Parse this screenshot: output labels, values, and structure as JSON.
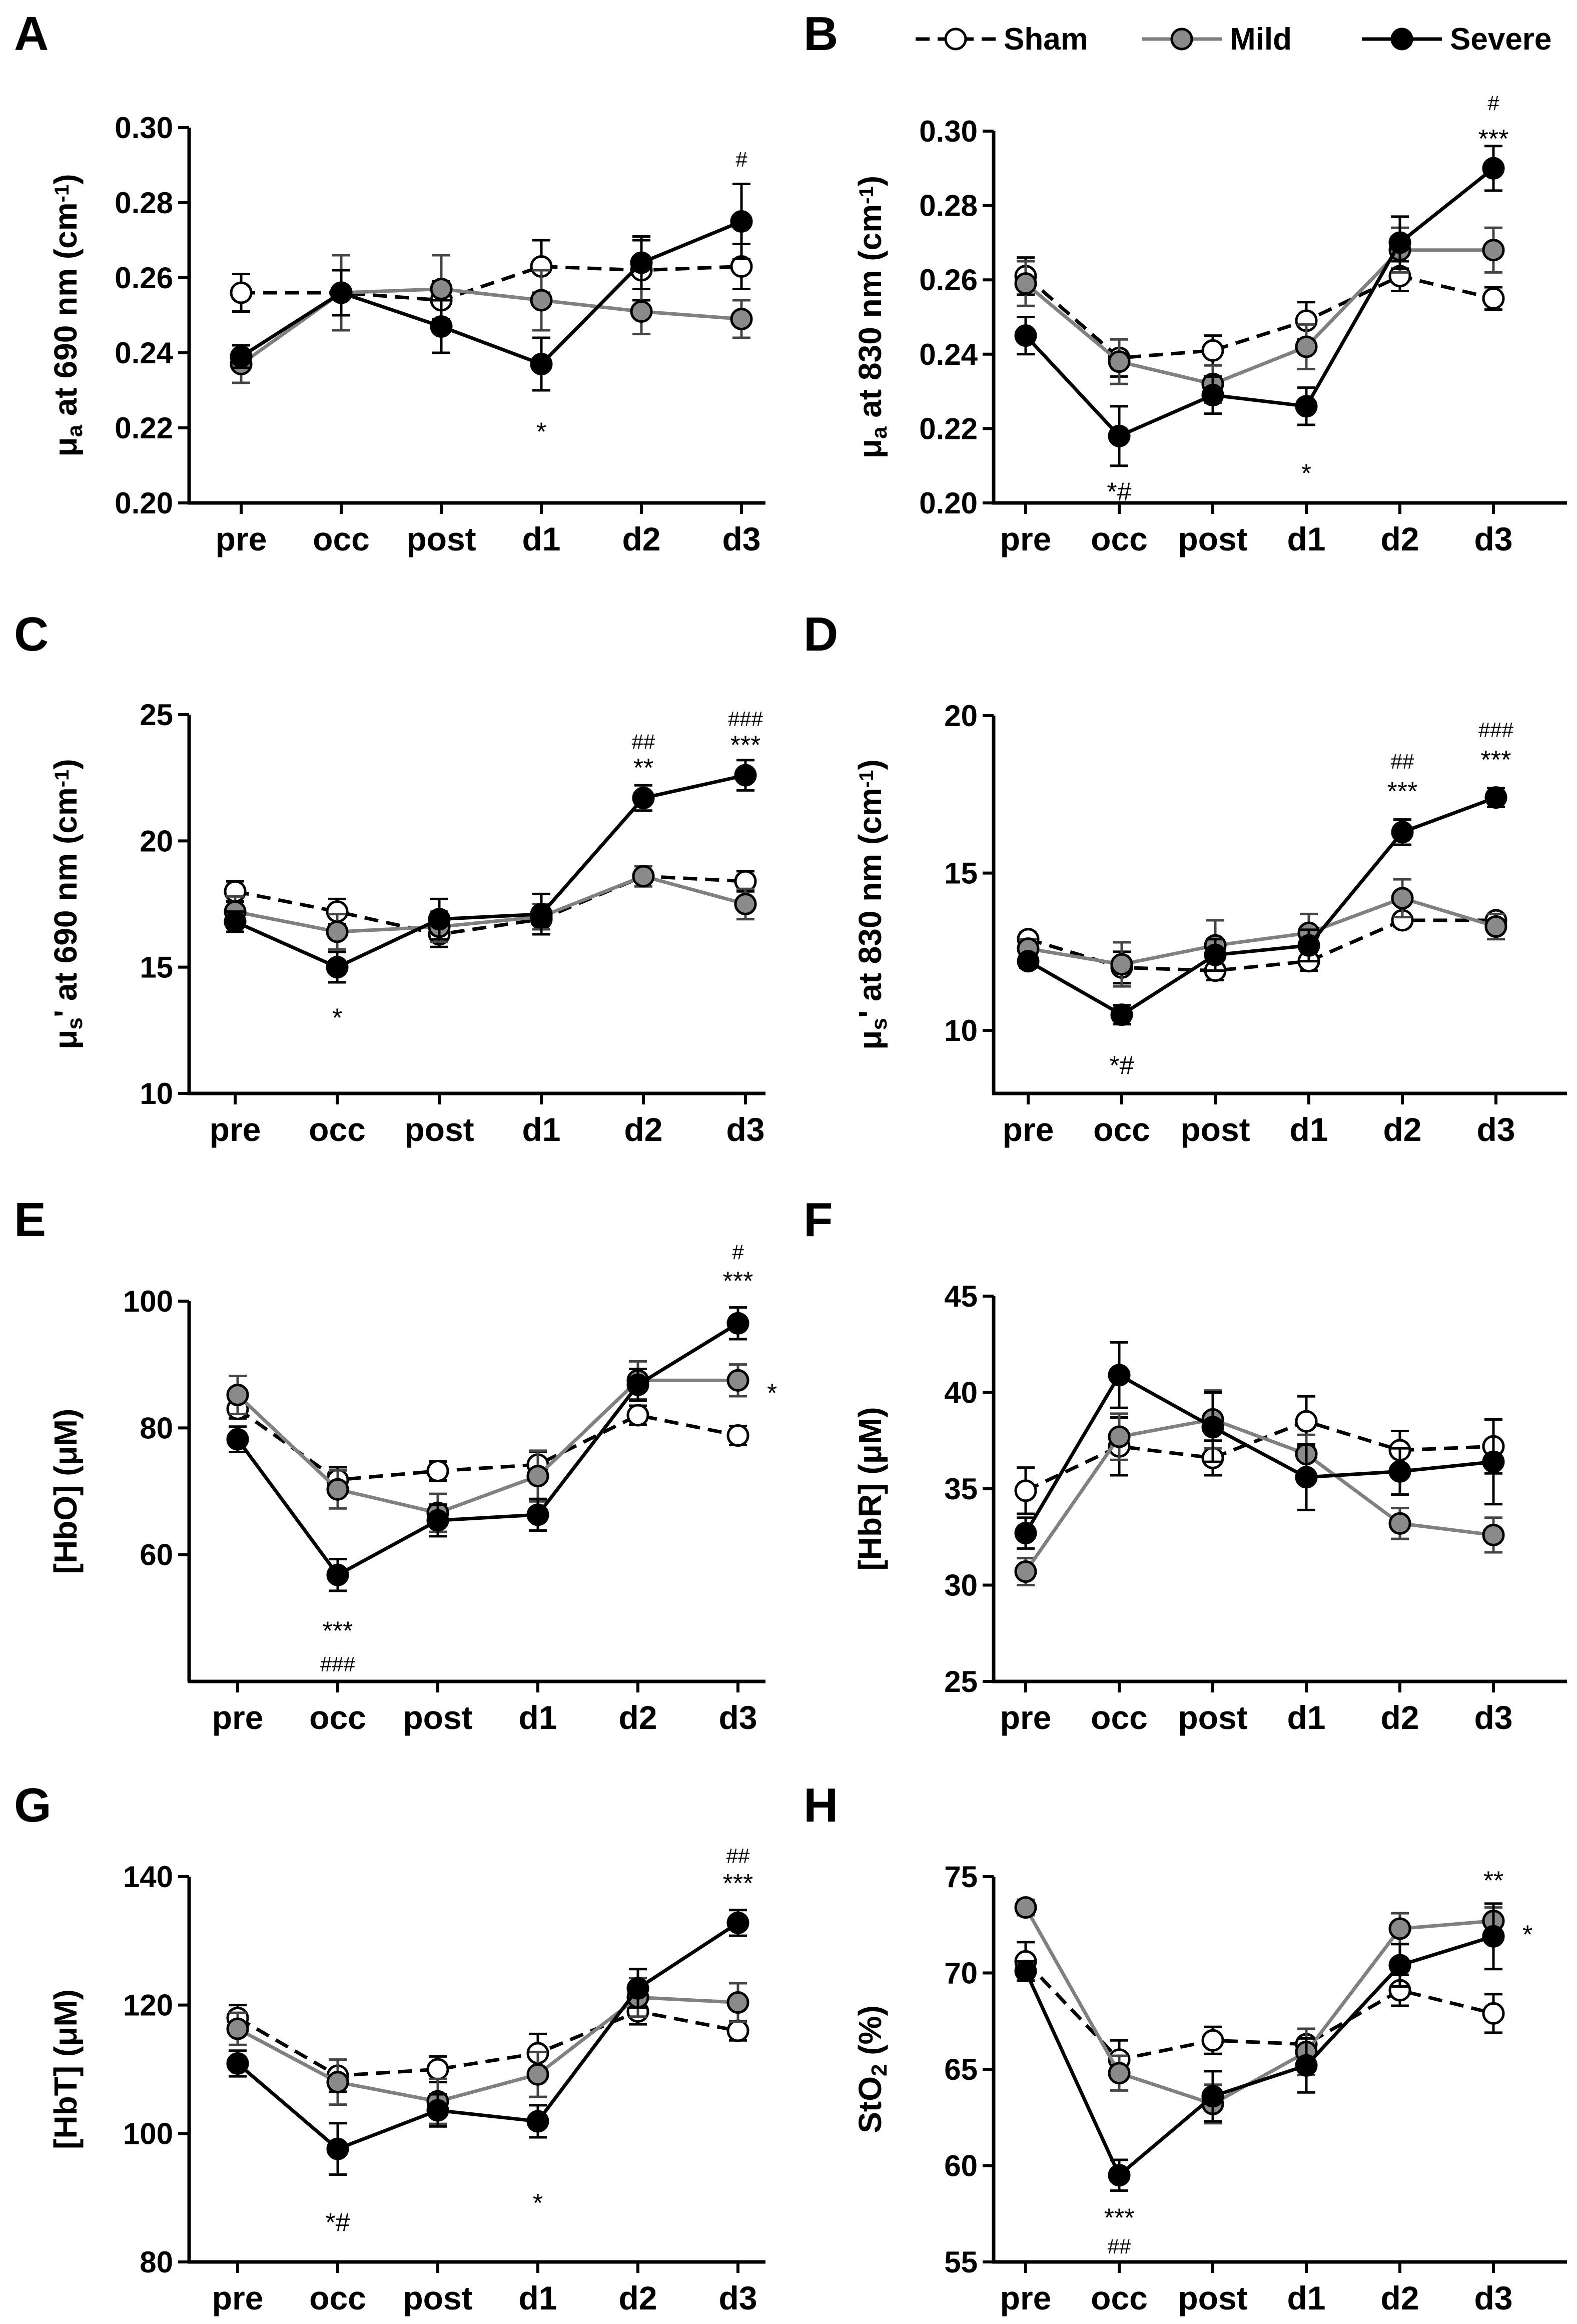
{
  "legend": [
    {
      "name": "Sham",
      "style": "dashed",
      "line": "#000000",
      "fill": "#ffffff"
    },
    {
      "name": "Mild",
      "style": "solid",
      "line": "#808080",
      "fill": "#8a8a8a"
    },
    {
      "name": "Severe",
      "style": "solid",
      "line": "#000000",
      "fill": "#000000"
    }
  ],
  "chart_data": [
    {
      "panel": "A",
      "type": "line",
      "categories": [
        "pre",
        "occ",
        "post",
        "d1",
        "d2",
        "d3"
      ],
      "ylabel_main": "μ",
      "ylabel_sub": "a",
      "ylabel_rest": " at 690 nm (cm",
      "ylabel_sup": "-1",
      "ylabel_end": ")",
      "ylim": [
        0.2,
        0.3
      ],
      "yticks": [
        "0.20",
        "0.22",
        "0.24",
        "0.26",
        "0.28",
        "0.30"
      ],
      "yticks_v": [
        0.2,
        0.22,
        0.24,
        0.26,
        0.28,
        0.3
      ],
      "series": [
        {
          "name": "Sham",
          "values": [
            0.256,
            0.256,
            0.254,
            0.263,
            0.262,
            0.263
          ],
          "err": [
            0.005,
            0.006,
            0.005,
            0.007,
            0.008,
            0.006
          ]
        },
        {
          "name": "Mild",
          "values": [
            0.237,
            0.256,
            0.257,
            0.254,
            0.251,
            0.249
          ],
          "err": [
            0.005,
            0.01,
            0.009,
            0.008,
            0.006,
            0.005
          ]
        },
        {
          "name": "Severe",
          "values": [
            0.239,
            0.256,
            0.247,
            0.237,
            0.264,
            0.275
          ],
          "err": [
            0.003,
            0.006,
            0.007,
            0.007,
            0.007,
            0.01
          ]
        }
      ],
      "annotations": [
        {
          "cat": "d1",
          "y": 0.219,
          "text": "*",
          "kind": "star"
        },
        {
          "cat": "d3",
          "y": 0.292,
          "text": "#",
          "kind": "hash"
        }
      ]
    },
    {
      "panel": "B",
      "type": "line",
      "categories": [
        "pre",
        "occ",
        "post",
        "d1",
        "d2",
        "d3"
      ],
      "ylabel_main": "μ",
      "ylabel_sub": "a",
      "ylabel_rest": " at 830 nm (cm",
      "ylabel_sup": "-1",
      "ylabel_end": ")",
      "ylim": [
        0.2,
        0.3
      ],
      "yticks": [
        "0.20",
        "0.22",
        "0.24",
        "0.26",
        "0.28",
        "0.30"
      ],
      "yticks_v": [
        0.2,
        0.22,
        0.24,
        0.26,
        0.28,
        0.3
      ],
      "series": [
        {
          "name": "Sham",
          "values": [
            0.261,
            0.239,
            0.241,
            0.249,
            0.261,
            0.255
          ],
          "err": [
            0.005,
            0.005,
            0.004,
            0.005,
            0.004,
            0.003
          ]
        },
        {
          "name": "Mild",
          "values": [
            0.259,
            0.238,
            0.232,
            0.242,
            0.268,
            0.268
          ],
          "err": [
            0.006,
            0.006,
            0.005,
            0.006,
            0.006,
            0.006
          ]
        },
        {
          "name": "Severe",
          "values": [
            0.245,
            0.218,
            0.229,
            0.226,
            0.27,
            0.29
          ],
          "err": [
            0.005,
            0.008,
            0.005,
            0.005,
            0.007,
            0.006
          ]
        }
      ],
      "annotations": [
        {
          "cat": "occ",
          "y": 0.203,
          "text": "*#",
          "kind": "star"
        },
        {
          "cat": "d1",
          "y": 0.208,
          "text": "*",
          "kind": "star"
        },
        {
          "cat": "d3",
          "y": 0.298,
          "text": "***",
          "kind": "star"
        },
        {
          "cat": "d3",
          "y": 0.308,
          "text": "#",
          "kind": "hash"
        }
      ]
    },
    {
      "panel": "C",
      "type": "line",
      "categories": [
        "pre",
        "occ",
        "post",
        "d1",
        "d2",
        "d3"
      ],
      "ylabel_main": "μ",
      "ylabel_sub": "s",
      "ylabel_rest": "' at 690 nm (cm",
      "ylabel_sup": "-1",
      "ylabel_end": ")",
      "ylim": [
        10,
        25
      ],
      "yticks": [
        "10",
        "15",
        "20",
        "25"
      ],
      "yticks_v": [
        10,
        15,
        20,
        25
      ],
      "series": [
        {
          "name": "Sham",
          "values": [
            18.0,
            17.2,
            16.3,
            16.9,
            18.6,
            18.4
          ],
          "err": [
            0.4,
            0.5,
            0.5,
            0.4,
            0.4,
            0.4
          ]
        },
        {
          "name": "Mild",
          "values": [
            17.2,
            16.4,
            16.6,
            17.0,
            18.6,
            17.5
          ],
          "err": [
            0.6,
            0.7,
            0.6,
            0.5,
            0.4,
            0.6
          ]
        },
        {
          "name": "Severe",
          "values": [
            16.8,
            15.0,
            16.9,
            17.1,
            21.7,
            22.6
          ],
          "err": [
            0.4,
            0.6,
            0.8,
            0.8,
            0.5,
            0.6
          ]
        }
      ],
      "annotations": [
        {
          "cat": "occ",
          "y": 13.0,
          "text": "*",
          "kind": "star"
        },
        {
          "cat": "d2",
          "y": 22.9,
          "text": "**",
          "kind": "star"
        },
        {
          "cat": "d2",
          "y": 24.0,
          "text": "##",
          "kind": "hash"
        },
        {
          "cat": "d3",
          "y": 23.8,
          "text": "***",
          "kind": "star"
        },
        {
          "cat": "d3",
          "y": 24.9,
          "text": "###",
          "kind": "hash"
        }
      ]
    },
    {
      "panel": "D",
      "type": "line",
      "categories": [
        "pre",
        "occ",
        "post",
        "d1",
        "d2",
        "d3"
      ],
      "ylabel_main": "μ",
      "ylabel_sub": "s",
      "ylabel_rest": "' at 830 nm (cm",
      "ylabel_sup": "-1",
      "ylabel_end": ")",
      "ylim": [
        8,
        20
      ],
      "yticks": [
        "10",
        "15",
        "20"
      ],
      "yticks_v": [
        10,
        15,
        20
      ],
      "series": [
        {
          "name": "Sham",
          "values": [
            12.9,
            12.0,
            11.9,
            12.2,
            13.5,
            13.5
          ],
          "err": [
            0.2,
            0.5,
            0.3,
            0.3,
            0.2,
            0.2
          ]
        },
        {
          "name": "Mild",
          "values": [
            12.6,
            12.1,
            12.7,
            13.1,
            14.2,
            13.3
          ],
          "err": [
            0.3,
            0.7,
            0.8,
            0.6,
            0.6,
            0.4
          ]
        },
        {
          "name": "Severe",
          "values": [
            12.2,
            10.5,
            12.4,
            12.7,
            16.3,
            17.4
          ],
          "err": [
            0.2,
            0.3,
            0.5,
            0.5,
            0.4,
            0.3
          ]
        }
      ],
      "annotations": [
        {
          "cat": "occ",
          "y": 8.9,
          "text": "*#",
          "kind": "star"
        },
        {
          "cat": "d2",
          "y": 17.6,
          "text": "***",
          "kind": "star"
        },
        {
          "cat": "d2",
          "y": 18.6,
          "text": "##",
          "kind": "hash"
        },
        {
          "cat": "d3",
          "y": 18.6,
          "text": "***",
          "kind": "star"
        },
        {
          "cat": "d3",
          "y": 19.6,
          "text": "###",
          "kind": "hash"
        }
      ]
    },
    {
      "panel": "E",
      "type": "line",
      "categories": [
        "pre",
        "occ",
        "post",
        "d1",
        "d2",
        "d3"
      ],
      "ylabel_main": "[HbO] (",
      "ylabel_sub": "",
      "ylabel_rest": "μM",
      "ylabel_sup": "",
      "ylabel_end": ")",
      "ylim": [
        40,
        100
      ],
      "yticks": [
        "60",
        "80",
        "100"
      ],
      "yticks_v": [
        60,
        80,
        100
      ],
      "series": [
        {
          "name": "Sham",
          "values": [
            83.0,
            71.8,
            73.2,
            74.2,
            82.0,
            78.8
          ],
          "err": [
            1.5,
            2.0,
            1.5,
            2.0,
            1.5,
            1.5
          ]
        },
        {
          "name": "Mild",
          "values": [
            85.2,
            70.3,
            66.6,
            72.4,
            87.5,
            87.5
          ],
          "err": [
            3.0,
            3.0,
            3.0,
            4.0,
            3.0,
            2.5
          ]
        },
        {
          "name": "Severe",
          "values": [
            78.2,
            56.8,
            65.4,
            66.3,
            86.8,
            96.5
          ],
          "err": [
            2.0,
            2.5,
            2.5,
            2.5,
            2.5,
            2.5
          ]
        }
      ],
      "annotations": [
        {
          "cat": "occ",
          "y": 48.0,
          "text": "***",
          "kind": "star"
        },
        {
          "cat": "occ",
          "y": 43.0,
          "text": "###",
          "kind": "hash"
        },
        {
          "cat": "d3",
          "y": 103.2,
          "text": "***",
          "kind": "star"
        },
        {
          "cat": "d3",
          "y": 108.0,
          "text": "#",
          "kind": "hash"
        },
        {
          "cat": "d3",
          "y": 85.5,
          "text": "*",
          "kind": "side"
        }
      ]
    },
    {
      "panel": "F",
      "type": "line",
      "categories": [
        "pre",
        "occ",
        "post",
        "d1",
        "d2",
        "d3"
      ],
      "ylabel_main": "[HbR] (",
      "ylabel_sub": "",
      "ylabel_rest": "μM",
      "ylabel_sup": "",
      "ylabel_end": ")",
      "ylim": [
        25,
        45
      ],
      "yticks": [
        "25",
        "30",
        "35",
        "40",
        "45"
      ],
      "yticks_v": [
        25,
        30,
        35,
        40,
        45
      ],
      "series": [
        {
          "name": "Sham",
          "values": [
            34.9,
            37.2,
            36.6,
            38.5,
            37.0,
            37.2
          ],
          "err": [
            1.2,
            1.5,
            0.9,
            1.3,
            1.0,
            1.4
          ]
        },
        {
          "name": "Mild",
          "values": [
            30.7,
            37.7,
            38.6,
            36.8,
            33.2,
            32.6
          ],
          "err": [
            0.7,
            1.2,
            1.5,
            1.0,
            0.8,
            0.9
          ]
        },
        {
          "name": "Severe",
          "values": [
            32.7,
            40.9,
            38.2,
            35.6,
            35.9,
            36.4
          ],
          "err": [
            0.8,
            1.7,
            1.8,
            1.7,
            1.2,
            2.2
          ]
        }
      ],
      "annotations": []
    },
    {
      "panel": "G",
      "type": "line",
      "categories": [
        "pre",
        "occ",
        "post",
        "d1",
        "d2",
        "d3"
      ],
      "ylabel_main": "[HbT] (",
      "ylabel_sub": "",
      "ylabel_rest": "μM",
      "ylabel_sup": "",
      "ylabel_end": ")",
      "ylim": [
        80,
        140
      ],
      "yticks": [
        "80",
        "100",
        "120",
        "140"
      ],
      "yticks_v": [
        80,
        100,
        120,
        140
      ],
      "series": [
        {
          "name": "Sham",
          "values": [
            118.0,
            109.0,
            110.0,
            112.5,
            119.0,
            116.0
          ],
          "err": [
            2.0,
            2.5,
            2.0,
            3.0,
            2.0,
            1.5
          ]
        },
        {
          "name": "Mild",
          "values": [
            116.3,
            108.0,
            105.0,
            109.2,
            121.2,
            120.4
          ],
          "err": [
            2.5,
            3.5,
            3.5,
            3.5,
            3.0,
            3.0
          ]
        },
        {
          "name": "Severe",
          "values": [
            110.9,
            97.6,
            103.6,
            101.9,
            122.6,
            132.8
          ],
          "err": [
            2.0,
            4.0,
            2.5,
            2.5,
            3.0,
            2.0
          ]
        }
      ],
      "annotations": [
        {
          "cat": "occ",
          "y": 86.2,
          "text": "*#",
          "kind": "star"
        },
        {
          "cat": "d1",
          "y": 89.2,
          "text": "*",
          "kind": "star"
        },
        {
          "cat": "d3",
          "y": 139.0,
          "text": "***",
          "kind": "star"
        },
        {
          "cat": "d3",
          "y": 143.5,
          "text": "##",
          "kind": "hash"
        }
      ]
    },
    {
      "panel": "H",
      "type": "line",
      "categories": [
        "pre",
        "occ",
        "post",
        "d1",
        "d2",
        "d3"
      ],
      "ylabel_main": "StO",
      "ylabel_sub": "2",
      "ylabel_rest": " (%)",
      "ylabel_sup": "",
      "ylabel_end": "",
      "ylim": [
        55,
        75
      ],
      "yticks": [
        "55",
        "60",
        "65",
        "70",
        "75"
      ],
      "yticks_v": [
        55,
        60,
        65,
        70,
        75
      ],
      "series": [
        {
          "name": "Sham",
          "values": [
            70.6,
            65.5,
            66.5,
            66.3,
            69.1,
            67.9
          ],
          "err": [
            1.0,
            1.0,
            0.7,
            0.8,
            0.8,
            1.0
          ]
        },
        {
          "name": "Mild",
          "values": [
            73.4,
            64.8,
            63.2,
            65.9,
            72.3,
            72.7
          ],
          "err": [
            0.4,
            0.9,
            1.0,
            1.2,
            0.8,
            0.7
          ]
        },
        {
          "name": "Severe",
          "values": [
            70.1,
            59.5,
            63.6,
            65.2,
            70.4,
            71.9
          ],
          "err": [
            0.5,
            0.8,
            1.3,
            1.4,
            1.1,
            1.7
          ]
        }
      ],
      "annotations": [
        {
          "cat": "occ",
          "y": 57.3,
          "text": "***",
          "kind": "star"
        },
        {
          "cat": "occ",
          "y": 55.9,
          "text": "##",
          "kind": "hash"
        },
        {
          "cat": "d3",
          "y": 74.8,
          "text": "**",
          "kind": "star"
        },
        {
          "cat": "d3",
          "y": 72.0,
          "text": "*",
          "kind": "side"
        }
      ]
    }
  ]
}
